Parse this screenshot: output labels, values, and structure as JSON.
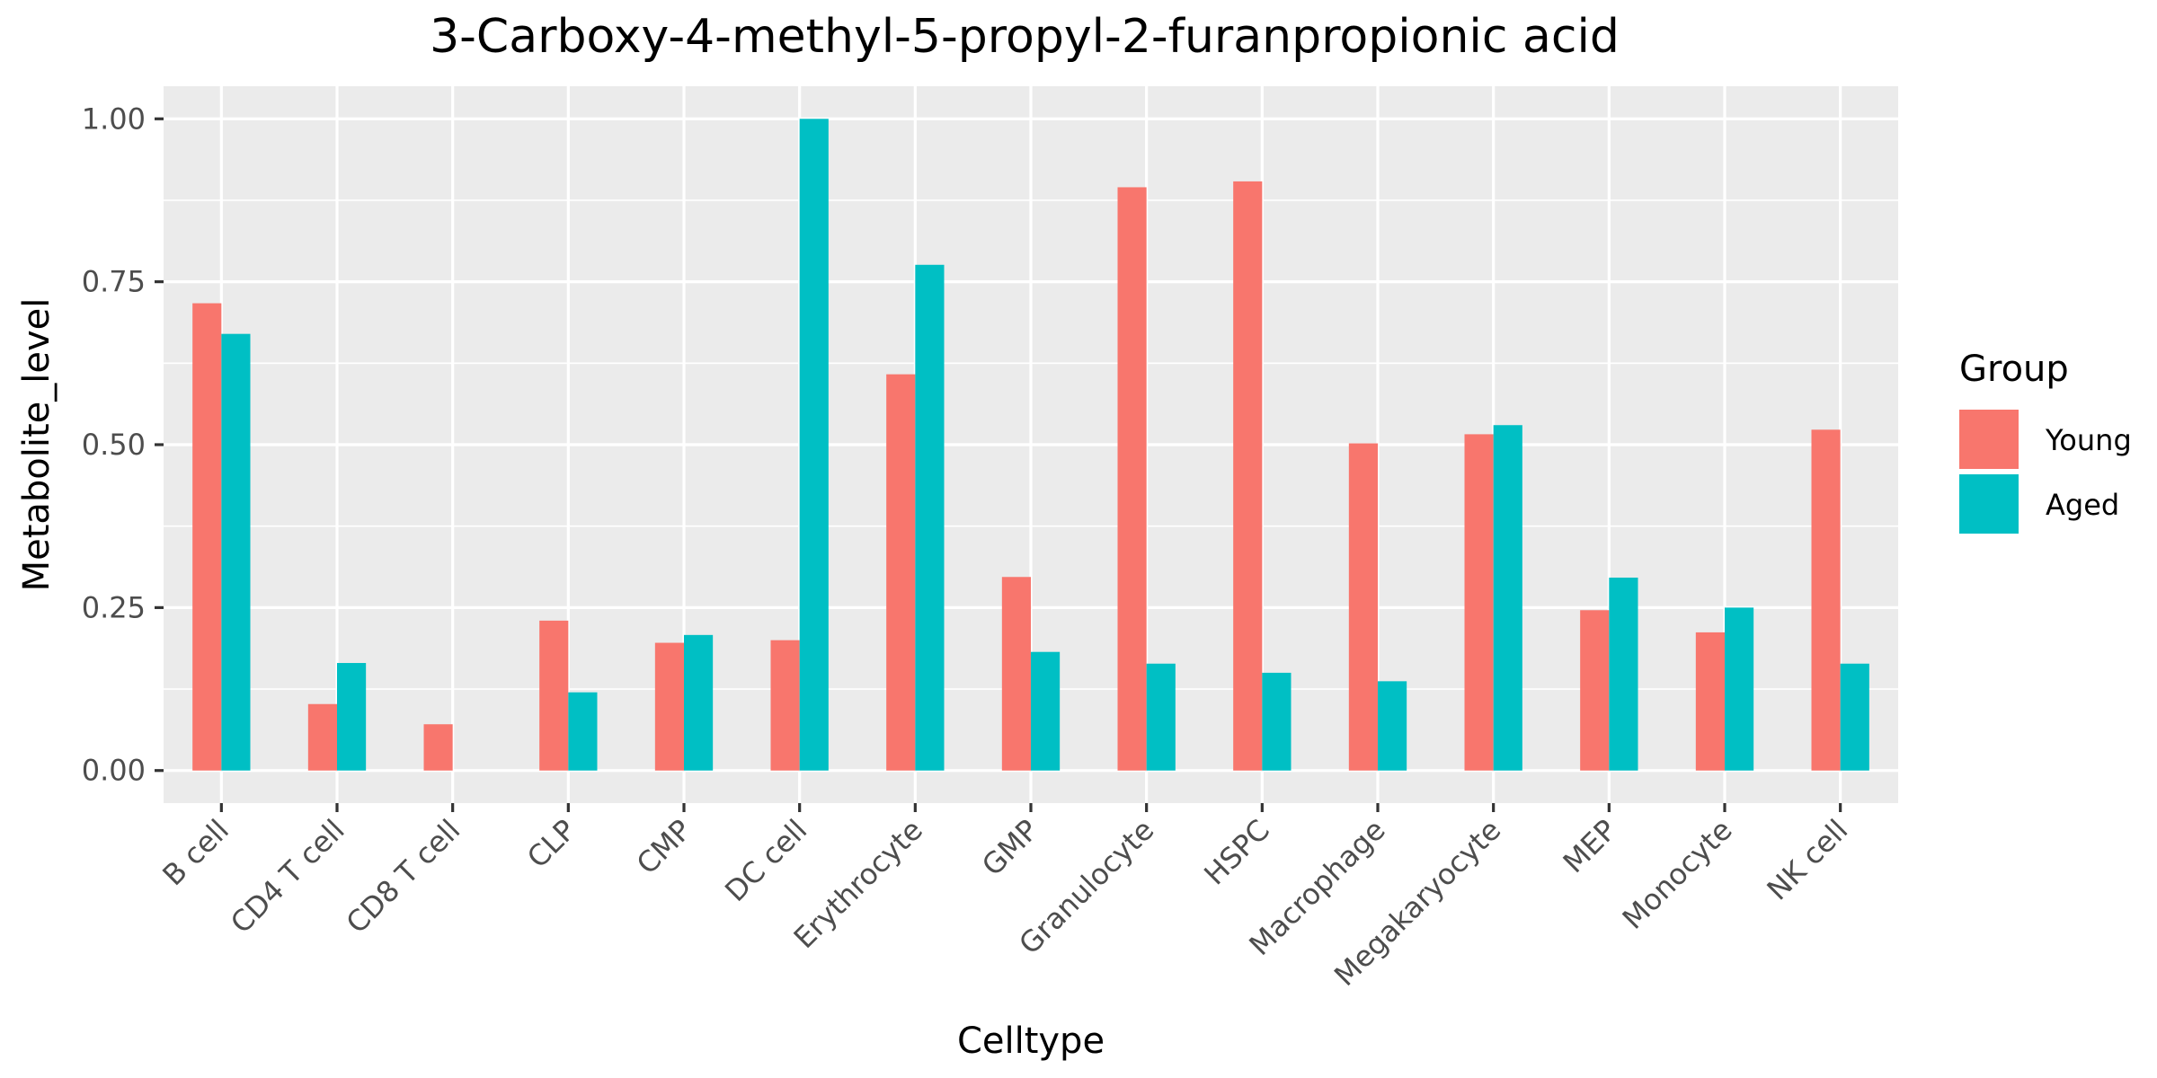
{
  "chart_data": {
    "type": "bar",
    "title": "3-Carboxy-4-methyl-5-propyl-2-furanpropionic acid",
    "xlabel": "Celltype",
    "ylabel": "Metabolite_level",
    "ylim": [
      -0.05,
      1.05
    ],
    "yticks": [
      0.0,
      0.25,
      0.5,
      0.75,
      1.0
    ],
    "ytick_labels": [
      "0.00",
      "0.25",
      "0.50",
      "0.75",
      "1.00"
    ],
    "categories": [
      "B cell",
      "CD4 T cell",
      "CD8 T cell",
      "CLP",
      "CMP",
      "DC cell",
      "Erythrocyte",
      "GMP",
      "Granulocyte",
      "HSPC",
      "Macrophage",
      "Megakaryocyte",
      "MEP",
      "Monocyte",
      "NK cell"
    ],
    "series": [
      {
        "name": "Young",
        "color": "#F8766D",
        "values": [
          0.717,
          0.102,
          0.071,
          0.23,
          0.196,
          0.2,
          0.608,
          0.297,
          0.895,
          0.904,
          0.502,
          0.516,
          0.246,
          0.212,
          0.523
        ]
      },
      {
        "name": "Aged",
        "color": "#00BFC4",
        "values": [
          0.67,
          0.165,
          0.0,
          0.12,
          0.208,
          1.0,
          0.776,
          0.182,
          0.164,
          0.15,
          0.137,
          0.53,
          0.296,
          0.25,
          0.164
        ]
      }
    ],
    "legend": {
      "title": "Group",
      "position": "right"
    },
    "grid": true,
    "panel_background": "#EBEBEB",
    "grid_color": "#FFFFFF"
  }
}
